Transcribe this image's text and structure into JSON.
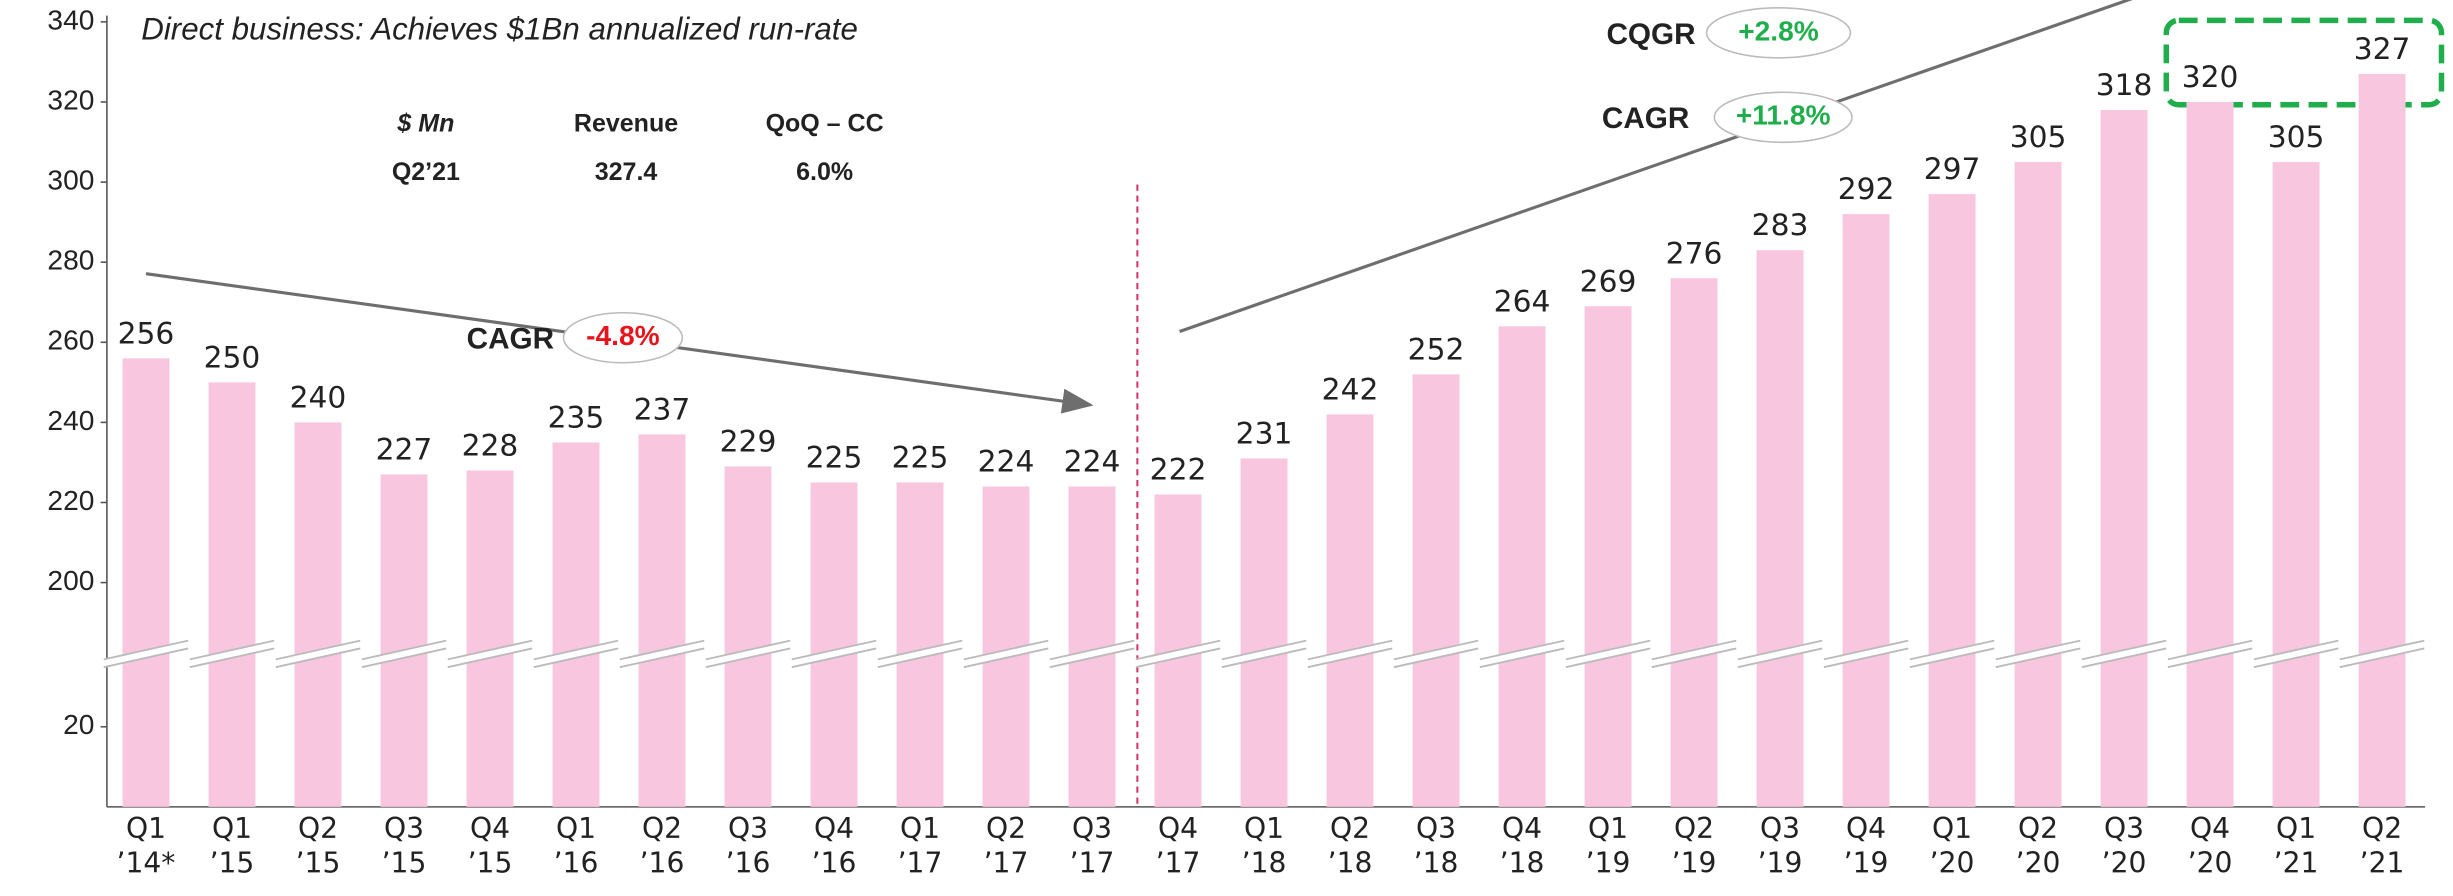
{
  "chart_data": {
    "type": "bar",
    "title": "Direct business: Achieves $1Bn annualized run-rate",
    "table": {
      "header": [
        "$ Mn",
        "Revenue",
        "QoQ – CC"
      ],
      "row": [
        "Q2’21",
        "327.4",
        "6.0%"
      ]
    },
    "annotations": [
      {
        "label": "CAGR",
        "value": "-4.8%",
        "color": "#e8141b"
      },
      {
        "label": "CAGR",
        "value": "+11.8%",
        "color": "#1fae4b"
      },
      {
        "label": "CQGR",
        "value": "+2.8%",
        "color": "#1fae4b"
      }
    ],
    "categories": [
      "Q1 ’14*",
      "Q1 ’15",
      "Q2 ’15",
      "Q3 ’15",
      "Q4 ’15",
      "Q1 ’16",
      "Q2 ’16",
      "Q3 ’16",
      "Q4 ’16",
      "Q1 ’17",
      "Q2 ’17",
      "Q3 ’17",
      "Q4 ’17",
      "Q1 ’18",
      "Q2 ’18",
      "Q3 ’18",
      "Q4 ’18",
      "Q1 ’19",
      "Q2 ’19",
      "Q3 ’19",
      "Q4 ’19",
      "Q1 ’20",
      "Q2 ’20",
      "Q3 ’20",
      "Q4 ’20",
      "Q1 ’21",
      "Q2 ’21"
    ],
    "values": [
      256,
      250,
      240,
      227,
      228,
      235,
      237,
      229,
      225,
      225,
      224,
      224,
      222,
      231,
      242,
      252,
      264,
      269,
      276,
      283,
      292,
      297,
      305,
      318,
      320,
      305,
      327
    ],
    "color": "#f9c6df",
    "ylim": [
      0,
      340
    ],
    "axis_break": [
      38,
      182
    ],
    "yticks": [
      20,
      200,
      220,
      240,
      260,
      280,
      300,
      320,
      340
    ],
    "grid": false
  }
}
